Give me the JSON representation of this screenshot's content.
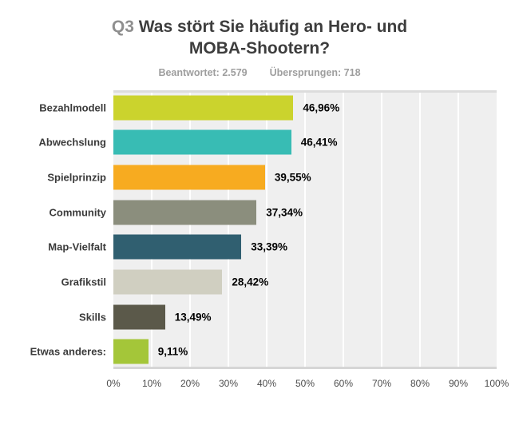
{
  "header": {
    "title_prefix": "Q3",
    "title": "Was stört Sie häufig an Hero- und MOBA-Shootern?",
    "answered": "Beantwortet: 2.579",
    "skipped": "Übersprungen: 718"
  },
  "chart_data": {
    "type": "bar",
    "orientation": "horizontal",
    "title": "Q3 Was stört Sie häufig an Hero- und MOBA-Shootern?",
    "categories": [
      "Bezahlmodell",
      "Abwechslung",
      "Spielprinzip",
      "Community",
      "Map-Vielfalt",
      "Grafikstil",
      "Skills",
      "Etwas anderes:"
    ],
    "values": [
      46.96,
      46.41,
      39.55,
      37.34,
      33.39,
      28.42,
      13.49,
      9.11
    ],
    "value_labels": [
      "46,96%",
      "46,41%",
      "39,55%",
      "37,34%",
      "33,39%",
      "28,42%",
      "13,49%",
      "9,11%"
    ],
    "bar_colors": [
      "#cbd32d",
      "#38bcb4",
      "#f7ab20",
      "#8b8e7d",
      "#305f70",
      "#d0cfc1",
      "#5b594a",
      "#a4c639"
    ],
    "x_ticks": [
      "0%",
      "10%",
      "20%",
      "30%",
      "40%",
      "50%",
      "60%",
      "70%",
      "80%",
      "90%",
      "100%"
    ],
    "xlim": [
      0,
      100
    ],
    "xlabel": "",
    "ylabel": "",
    "grid": true,
    "legend": false,
    "plot_background": "#efefef",
    "gridline_color": "#ffffff",
    "axis_border_color": "#dcdcdc"
  }
}
